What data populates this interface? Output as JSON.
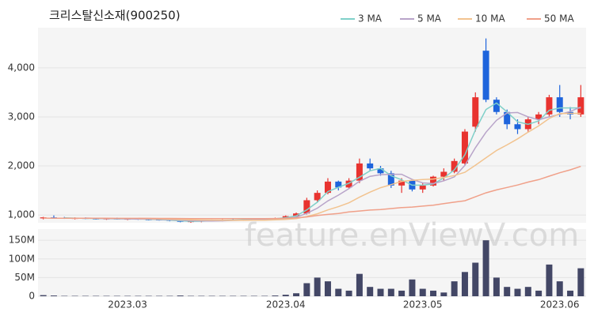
{
  "chart_data": {
    "type": "candlestick",
    "title": "크리스탈신소재(900250)",
    "watermark": "feature.enViewV.com",
    "categories": [
      null,
      null,
      null,
      null,
      null,
      null,
      null,
      null,
      "2023.03",
      null,
      null,
      null,
      null,
      null,
      null,
      null,
      null,
      null,
      null,
      null,
      null,
      null,
      null,
      "2023.04",
      null,
      null,
      null,
      null,
      null,
      null,
      null,
      null,
      null,
      null,
      null,
      null,
      "2023.05",
      null,
      null,
      null,
      null,
      null,
      null,
      null,
      null,
      null,
      null,
      null,
      null,
      "2023.06",
      null,
      null
    ],
    "open": [
      930,
      950,
      940,
      930,
      935,
      925,
      920,
      925,
      915,
      920,
      910,
      905,
      900,
      880,
      860,
      870,
      885,
      890,
      900,
      895,
      905,
      910,
      920,
      935,
      975,
      1030,
      1300,
      1450,
      1680,
      1560,
      1700,
      2050,
      1950,
      1850,
      1600,
      1700,
      1520,
      1600,
      1780,
      1880,
      2050,
      2800,
      4350,
      3350,
      3100,
      2850,
      2750,
      2950,
      3050,
      3400,
      3100,
      3050
    ],
    "high": [
      960,
      990,
      960,
      950,
      950,
      945,
      940,
      945,
      935,
      935,
      930,
      925,
      915,
      900,
      880,
      895,
      905,
      910,
      920,
      915,
      925,
      930,
      945,
      990,
      1050,
      1350,
      1500,
      1750,
      1700,
      1750,
      2150,
      2150,
      2000,
      1900,
      1750,
      1720,
      1650,
      1800,
      1950,
      2150,
      2750,
      3500,
      4600,
      3400,
      3150,
      2950,
      3000,
      3100,
      3450,
      3650,
      3200,
      3650
    ],
    "low": [
      910,
      930,
      920,
      910,
      915,
      905,
      900,
      905,
      895,
      900,
      890,
      885,
      870,
      850,
      840,
      850,
      865,
      870,
      880,
      880,
      885,
      890,
      905,
      920,
      960,
      1010,
      1250,
      1420,
      1500,
      1540,
      1650,
      1900,
      1800,
      1550,
      1450,
      1480,
      1450,
      1580,
      1700,
      1850,
      2000,
      2700,
      3300,
      3050,
      2750,
      2650,
      2700,
      2850,
      3000,
      3000,
      2950,
      3000
    ],
    "close": [
      950,
      940,
      930,
      935,
      925,
      920,
      925,
      915,
      920,
      910,
      905,
      900,
      880,
      860,
      870,
      885,
      890,
      900,
      895,
      905,
      910,
      920,
      935,
      975,
      1030,
      1300,
      1450,
      1680,
      1560,
      1700,
      2050,
      1950,
      1850,
      1600,
      1700,
      1520,
      1600,
      1780,
      1880,
      2100,
      2700,
      3400,
      3350,
      3100,
      2850,
      2750,
      2950,
      3050,
      3400,
      3100,
      3050,
      3400
    ],
    "up_color": "#e8332f",
    "down_color": "#1e64dc",
    "ylim": [
      840,
      4820
    ],
    "yticks": [
      {
        "value": 1000,
        "label": "1,000"
      },
      {
        "value": 2000,
        "label": "2,000"
      },
      {
        "value": 3000,
        "label": "3,000"
      },
      {
        "value": 4000,
        "label": "4,000"
      }
    ],
    "grid": true,
    "series": [
      {
        "name": "3 MA",
        "color": "#7fd0c9",
        "values": [
          null,
          null,
          940,
          935,
          930,
          927,
          923,
          920,
          920,
          915,
          912,
          905,
          895,
          880,
          870,
          872,
          882,
          892,
          895,
          900,
          903,
          912,
          922,
          943,
          980,
          1102,
          1260,
          1477,
          1563,
          1647,
          1770,
          1900,
          1950,
          1800,
          1717,
          1607,
          1607,
          1633,
          1753,
          1920,
          2227,
          2733,
          3150,
          3283,
          3100,
          2900,
          2850,
          2917,
          3133,
          3183,
          3183,
          3183
        ]
      },
      {
        "name": "5 MA",
        "color": "#b8a4c9",
        "values": [
          null,
          null,
          null,
          null,
          936,
          930,
          927,
          924,
          921,
          918,
          915,
          910,
          903,
          891,
          883,
          879,
          877,
          881,
          888,
          895,
          900,
          906,
          913,
          929,
          954,
          1032,
          1138,
          1287,
          1404,
          1538,
          1688,
          1788,
          1822,
          1830,
          1830,
          1724,
          1654,
          1640,
          1696,
          1776,
          2012,
          2372,
          2686,
          2930,
          3080,
          3090,
          3000,
          2940,
          3000,
          3050,
          3110,
          3200
        ]
      },
      {
        "name": "10 MA",
        "color": "#f2c38f",
        "values": [
          null,
          null,
          null,
          null,
          null,
          null,
          null,
          null,
          null,
          928,
          923,
          919,
          914,
          906,
          900,
          897,
          894,
          892,
          890,
          890,
          891,
          893,
          899,
          910,
          926,
          968,
          1024,
          1102,
          1168,
          1248,
          1362,
          1465,
          1556,
          1618,
          1685,
          1707,
          1722,
          1732,
          1764,
          1804,
          1869,
          2014,
          2164,
          2314,
          2429,
          2552,
          2688,
          2815,
          2967,
          3067,
          3072,
          3072
        ]
      },
      {
        "name": "50 MA",
        "color": "#f0a089",
        "values": [
          935,
          934,
          934,
          933,
          933,
          932,
          932,
          931,
          931,
          930,
          930,
          929,
          928,
          927,
          926,
          925,
          925,
          924,
          924,
          924,
          924,
          925,
          927,
          930,
          940,
          960,
          990,
          1010,
          1030,
          1060,
          1080,
          1100,
          1110,
          1130,
          1150,
          1160,
          1180,
          1200,
          1230,
          1260,
          1290,
          1370,
          1450,
          1510,
          1560,
          1610,
          1670,
          1720,
          1790,
          1860,
          1920,
          1990
        ]
      }
    ],
    "volume": {
      "color": "#434766",
      "ylim": [
        0,
        180000000
      ],
      "yticks": [
        0,
        {
          "value": 50000000,
          "label": "50M"
        },
        {
          "value": 100000000,
          "label": "100M"
        },
        {
          "value": 150000000,
          "label": "150M"
        }
      ],
      "values": [
        3000000,
        2000000,
        1000000,
        1000000,
        1000000,
        1000000,
        1000000,
        1000000,
        1000000,
        1000000,
        1000000,
        1000000,
        1000000,
        2000000,
        1000000,
        1000000,
        1000000,
        1000000,
        1000000,
        1000000,
        1000000,
        1000000,
        2000000,
        4000000,
        8000000,
        35000000,
        50000000,
        40000000,
        20000000,
        15000000,
        60000000,
        25000000,
        20000000,
        20000000,
        15000000,
        45000000,
        20000000,
        15000000,
        10000000,
        40000000,
        65000000,
        90000000,
        150000000,
        50000000,
        25000000,
        20000000,
        25000000,
        15000000,
        85000000,
        40000000,
        15000000,
        75000000
      ]
    }
  }
}
